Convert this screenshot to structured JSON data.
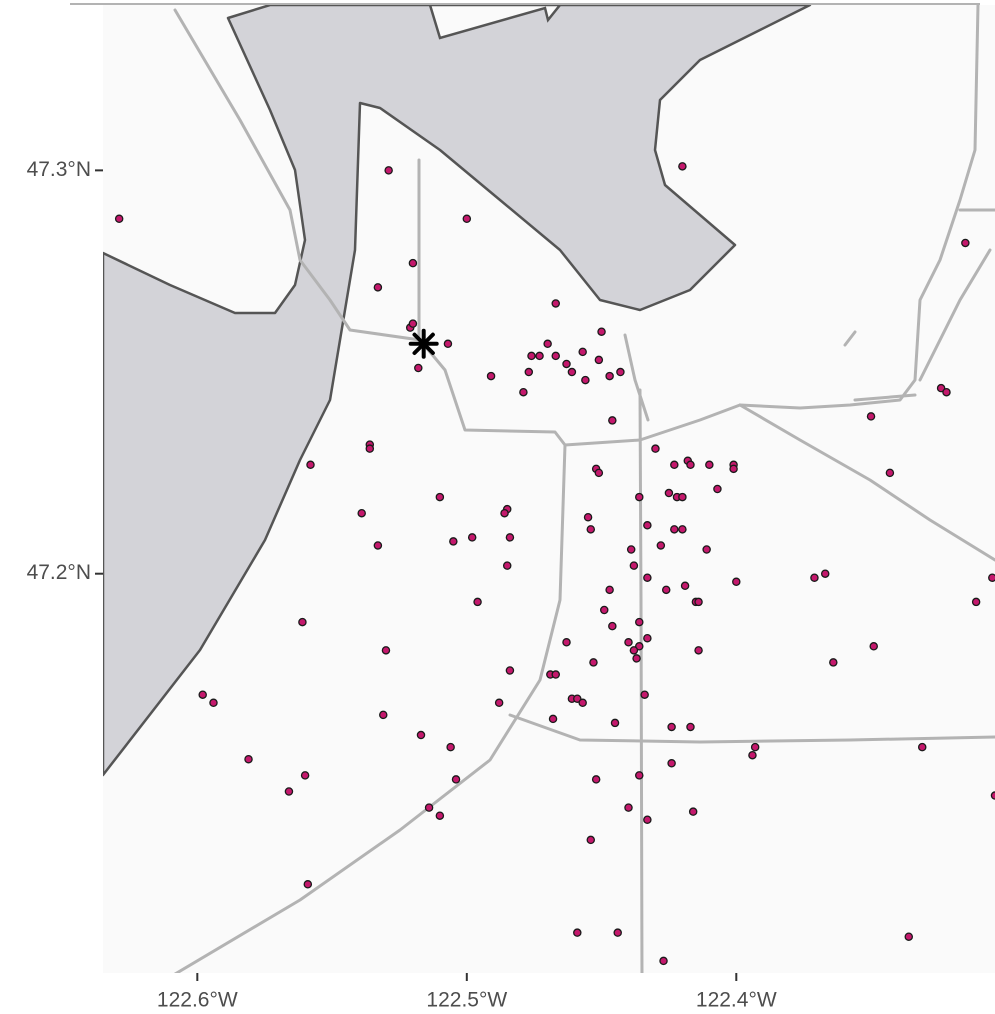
{
  "chart_data": {
    "type": "scatter",
    "x": [
      -122.629,
      -122.529,
      -122.42,
      -122.5,
      -122.52,
      -122.533,
      -122.467,
      -122.521,
      -122.52,
      -122.507,
      -122.518,
      -122.45,
      -122.47,
      -122.476,
      -122.473,
      -122.467,
      -122.457,
      -122.463,
      -122.461,
      -122.451,
      -122.443,
      -122.491,
      -122.477,
      -122.447,
      -122.456,
      -122.479,
      -122.324,
      -122.322,
      -122.35,
      -122.446,
      -122.315,
      -122.536,
      -122.536,
      -122.43,
      -122.558,
      -122.452,
      -122.451,
      -122.423,
      -122.418,
      -122.417,
      -122.41,
      -122.401,
      -122.401,
      -122.343,
      -122.407,
      -122.51,
      -122.425,
      -122.422,
      -122.42,
      -122.436,
      -122.485,
      -122.486,
      -122.539,
      -122.455,
      -122.454,
      -122.433,
      -122.423,
      -122.42,
      -122.484,
      -122.505,
      -122.498,
      -122.533,
      -122.428,
      -122.411,
      -122.439,
      -122.438,
      -122.485,
      -122.433,
      -122.371,
      -122.367,
      -122.4,
      -122.419,
      -122.426,
      -122.447,
      -122.305,
      -122.311,
      -122.496,
      -122.449,
      -122.446,
      -122.436,
      -122.415,
      -122.414,
      -122.561,
      -122.463,
      -122.44,
      -122.433,
      -122.436,
      -122.438,
      -122.437,
      -122.414,
      -122.349,
      -122.53,
      -122.364,
      -122.453,
      -122.484,
      -122.469,
      -122.467,
      -122.598,
      -122.594,
      -122.488,
      -122.461,
      -122.459,
      -122.457,
      -122.434,
      -122.531,
      -122.468,
      -122.445,
      -122.424,
      -122.417,
      -122.517,
      -122.393,
      -122.394,
      -122.331,
      -122.506,
      -122.581,
      -122.424,
      -122.56,
      -122.436,
      -122.504,
      -122.304,
      -122.452,
      -122.566,
      -122.514,
      -122.51,
      -122.44,
      -122.433,
      -122.416,
      -122.454,
      -122.559,
      -122.459,
      -122.444,
      -122.336,
      -122.427
    ],
    "y": [
      47.288,
      47.3,
      47.301,
      47.288,
      47.277,
      47.271,
      47.267,
      47.261,
      47.262,
      47.257,
      47.251,
      47.26,
      47.257,
      47.254,
      47.254,
      47.254,
      47.255,
      47.252,
      47.25,
      47.253,
      47.25,
      47.249,
      47.25,
      47.249,
      47.248,
      47.245,
      47.246,
      47.245,
      47.239,
      47.238,
      47.282,
      47.232,
      47.231,
      47.231,
      47.227,
      47.226,
      47.225,
      47.227,
      47.228,
      47.227,
      47.227,
      47.227,
      47.226,
      47.225,
      47.221,
      47.219,
      47.22,
      47.219,
      47.219,
      47.219,
      47.216,
      47.215,
      47.215,
      47.214,
      47.211,
      47.212,
      47.211,
      47.211,
      47.209,
      47.208,
      47.209,
      47.207,
      47.207,
      47.206,
      47.206,
      47.202,
      47.202,
      47.199,
      47.199,
      47.2,
      47.198,
      47.197,
      47.196,
      47.196,
      47.199,
      47.193,
      47.193,
      47.191,
      47.187,
      47.188,
      47.193,
      47.193,
      47.188,
      47.183,
      47.183,
      47.184,
      47.182,
      47.181,
      47.179,
      47.181,
      47.182,
      47.181,
      47.178,
      47.178,
      47.176,
      47.175,
      47.175,
      47.17,
      47.168,
      47.168,
      47.169,
      47.169,
      47.168,
      47.17,
      47.165,
      47.164,
      47.163,
      47.162,
      47.162,
      47.16,
      47.157,
      47.155,
      47.157,
      47.157,
      47.154,
      47.153,
      47.15,
      47.15,
      47.149,
      47.145,
      47.149,
      47.146,
      47.142,
      47.14,
      47.142,
      47.139,
      47.141,
      47.134,
      47.123,
      47.111,
      47.111,
      47.11,
      47.104
    ],
    "color": "#c4186c",
    "highlight": {
      "x": -122.516,
      "y": 47.257,
      "color": "#000000"
    },
    "xlim": [
      -122.635,
      -122.304
    ],
    "ylim": [
      47.101,
      47.341
    ],
    "xticks": [
      {
        "value": -122.6,
        "label": "122.6°W"
      },
      {
        "value": -122.5,
        "label": "122.5°W"
      },
      {
        "value": -122.4,
        "label": "122.4°W"
      }
    ],
    "yticks": [
      {
        "value": 47.2,
        "label": "47.2°N"
      },
      {
        "value": 47.3,
        "label": "47.3°N"
      }
    ]
  }
}
